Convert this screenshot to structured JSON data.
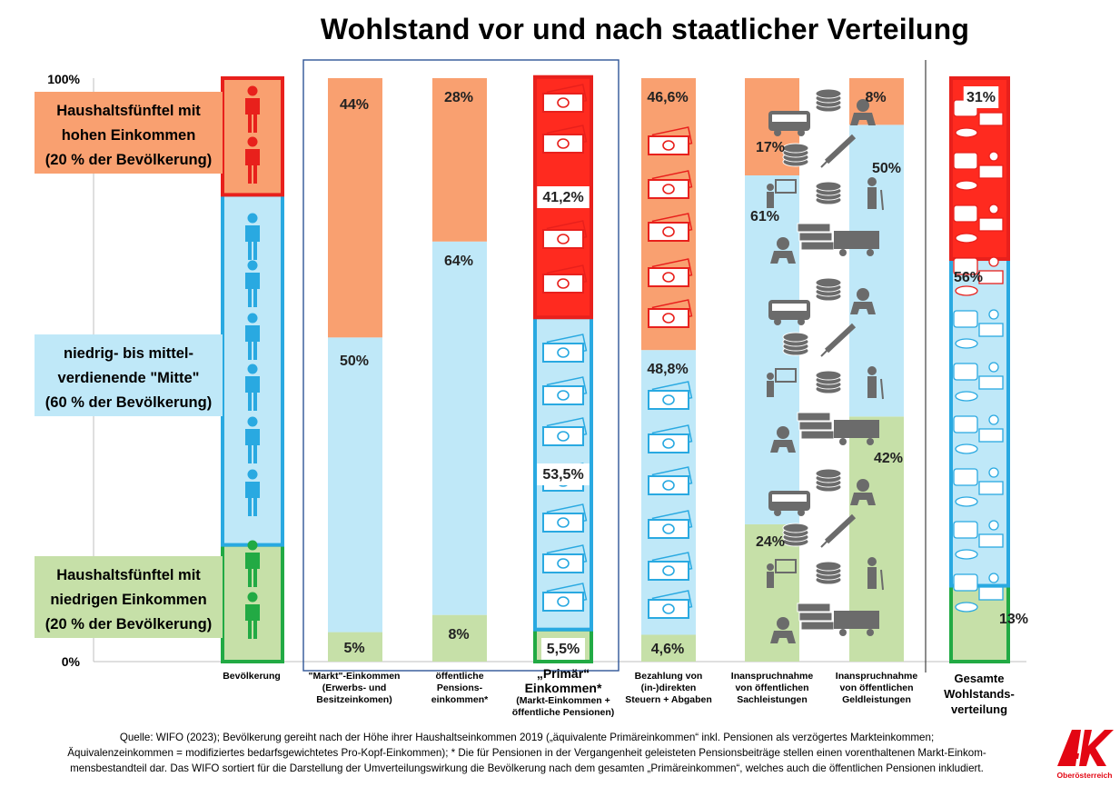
{
  "title": "Wohlstand vor und nach staatlicher Verteilung",
  "chart_data": {
    "type": "bar",
    "stacked": true,
    "ylim": [
      0,
      100
    ],
    "ytick_labels": [
      "0%",
      "100%"
    ],
    "categories": [
      "Bevölkerung",
      "\"Markt\"-Einkommen (Erwerbs- und Besitzeinkomen)",
      "öffentliche Pensions-einkommen*",
      "„Primär“ Einkommen* (Markt-Einkommen + öffentliche Pensionen)",
      "Bezahlung von (in-)direkten Steuern + Abgaben",
      "Inanspruchnahme von öffentlichen Sachleistungen",
      "Inanspruchnahme von öffentlichen Geldleistungen",
      "Gesamte Wohlstands-verteilung"
    ],
    "series": [
      {
        "name": "Haushaltsfünftel mit niedrigen Einkommen (20 % der Bevölkerung)",
        "color": "#c6e0a8",
        "values": [
          20,
          5,
          8,
          5.5,
          4.6,
          24,
          42,
          13
        ],
        "labels": [
          "",
          "5%",
          "8%",
          "5,5%",
          "4,6%",
          "24%",
          "42%",
          "13%"
        ]
      },
      {
        "name": "niedrig- bis mittel-verdienende \"Mitte\" (60 % der Bevölkerung)",
        "color": "#bfe8f8",
        "values": [
          60,
          50,
          64,
          53.5,
          48.8,
          61,
          50,
          56
        ],
        "labels": [
          "",
          "50%",
          "64%",
          "53,5%",
          "48,8%",
          "61%",
          "50%",
          "56%"
        ]
      },
      {
        "name": "Haushaltsfünftel mit hohen Einkommen (20 % der Bevölkerung)",
        "color": "#f9a070",
        "values": [
          20,
          44,
          28,
          41.2,
          46.6,
          17,
          8,
          31
        ],
        "labels": [
          "",
          "44%",
          "28%",
          "41,2%",
          "46,6%",
          "17%",
          "8%",
          "31%"
        ]
      }
    ],
    "group_labels": {
      "high": [
        "Haushaltsfünftel mit",
        "hohen Einkommen",
        "(20 % der Bevölkerung)"
      ],
      "mid": [
        "niedrig- bis mittel-",
        "verdienende \"Mitte\"",
        "(60 % der Bevölkerung)"
      ],
      "low": [
        "Haushaltsfünftel mit",
        "niedrigen Einkommen",
        "(20 % der Bevölkerung)"
      ]
    },
    "category_lines": [
      [
        "Bevölkerung"
      ],
      [
        "\"Markt\"-Einkommen",
        "(Erwerbs- und",
        "Besitzeinkomen)"
      ],
      [
        "öffentliche",
        "Pensions-",
        "einkommen*"
      ],
      [
        "„Primär“",
        "Einkommen*",
        "(Markt-Einkommen +",
        "öffentliche Pensionen)"
      ],
      [
        "Bezahlung von",
        "(in-)direkten",
        "Steuern + Abgaben"
      ],
      [
        "Inanspruchnahme",
        "von öffentlichen",
        "Sachleistungen"
      ],
      [
        "Inanspruchnahme",
        "von öffentlichen",
        "Geldleistungen"
      ],
      [
        "Gesamte",
        "Wohlstands-",
        "verteilung"
      ]
    ],
    "colors": {
      "low_dark": "#22aa44",
      "mid_dark": "#29a9e1",
      "high_dark": "#e8201c",
      "icon": "#6b6b6b",
      "frame": "#2f5597"
    }
  },
  "source": [
    "Quelle: WIFO (2023); Bevölkerung gereiht nach der Höhe ihrer Haushaltseinkommen 2019 („äquivalente Primäreinkommen“ inkl. Pensionen als verzögertes Markteinkommen;",
    "Äquivalenzeinkommen = modifiziertes bedarfsgewichtetes Pro-Kopf-Einkommen); * Die für Pensionen in der Vergangenheit geleisteten Pensionsbeiträge stellen einen vorenthaltenen Markt-Einkom-",
    "mensbestandteil dar. Das WIFO sortiert für die Darstellung der Umverteilungswirkung die Bevölkerung nach dem gesamten „Primäreinkommen“, welches auch die öffentlichen Pensionen inkludiert."
  ],
  "logo": {
    "text": "AK",
    "subtext": "Oberösterreich",
    "color": "#e30613"
  }
}
